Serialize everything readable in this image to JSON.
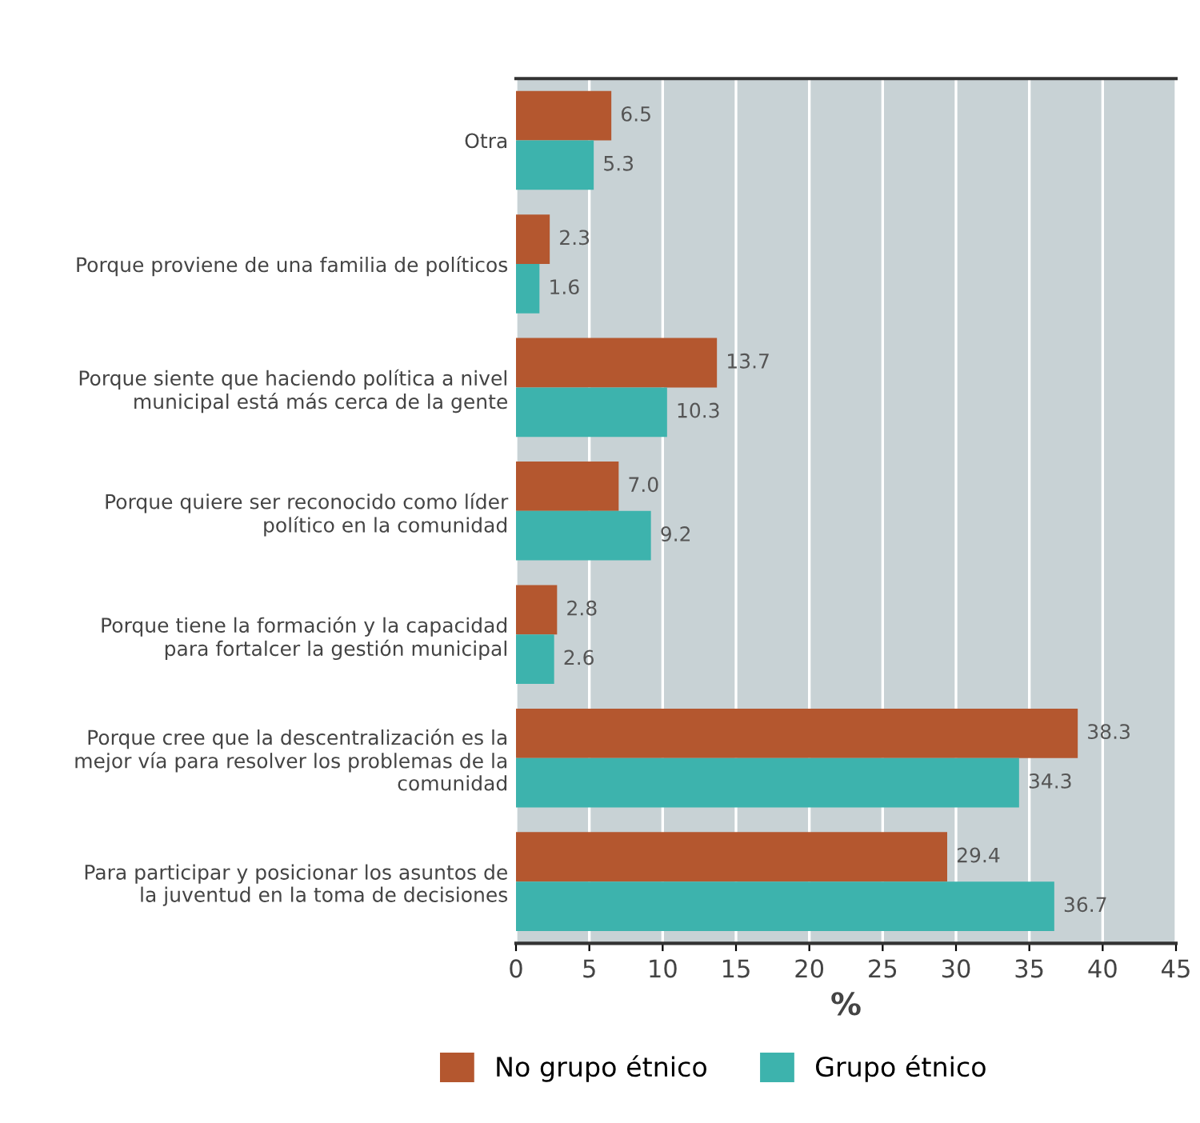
{
  "chart_data": {
    "type": "bar",
    "orientation": "horizontal",
    "xlabel": "%",
    "categories": [
      "Otra",
      "Porque proviene de una familia de políticos",
      "Porque siente que haciendo política a nivel\nmunicipal está más cerca de la gente",
      "Porque quiere ser reconocido como líder\npolítico en la comunidad",
      "Porque tiene la formación y la capacidad\npara fortalcer la gestión municipal",
      "Porque cree que la descentralización es la\nmejor vía para resolver los problemas de la\ncomunidad",
      "Para participar y posicionar los asuntos de\nla juventud en la toma de decisiones"
    ],
    "series": [
      {
        "name": "No grupo étnico",
        "color": "#b4572f",
        "values": [
          6.5,
          2.3,
          13.7,
          7.0,
          2.8,
          38.3,
          29.4
        ],
        "value_labels": [
          "6.5",
          "2.3",
          "13.7",
          "7.0",
          "2.8",
          "38.3",
          "29.4"
        ]
      },
      {
        "name": "Grupo étnico",
        "color": "#3db3ad",
        "values": [
          5.3,
          1.6,
          10.3,
          9.2,
          2.6,
          34.3,
          36.7
        ],
        "value_labels": [
          "5.3",
          "1.6",
          "10.3",
          "9.2",
          "2.6",
          "34.3",
          "36.7"
        ]
      }
    ],
    "xlim": [
      0,
      45
    ],
    "xticks": [
      0,
      5,
      10,
      15,
      20,
      25,
      30,
      35,
      40,
      45
    ],
    "grid": "x",
    "legend": "bottom"
  }
}
